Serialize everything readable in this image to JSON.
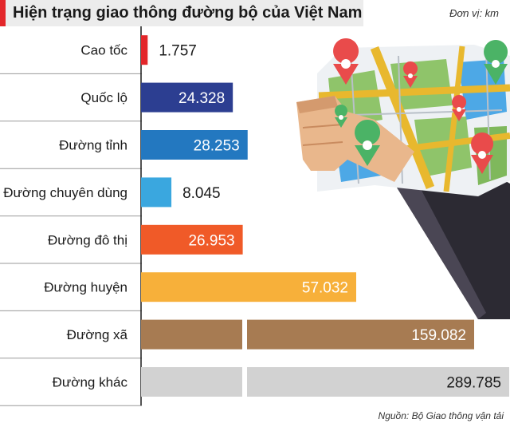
{
  "header": {
    "title": "Hiện trạng giao thông đường bộ của Việt Nam",
    "unit": "Đơn vị: km"
  },
  "source": "Nguồn: Bộ Giao thông vận tải",
  "colors": {
    "accent": "#e3262a",
    "title_bg": "#ececec"
  },
  "chart_data": {
    "type": "bar",
    "orientation": "horizontal",
    "categories": [
      "Cao tốc",
      "Quốc lộ",
      "Đường tỉnh",
      "Đường chuyên dùng",
      "Đường đô thị",
      "Đường huyện",
      "Đường xã",
      "Đường khác"
    ],
    "values": [
      1757,
      24328,
      28253,
      8045,
      26953,
      57032,
      159082,
      289785
    ],
    "value_labels": [
      "1.757",
      "24.328",
      "28.253",
      "8.045",
      "26.953",
      "57.032",
      "159.082",
      "289.785"
    ],
    "bar_colors": [
      "#e3262a",
      "#2c3e91",
      "#2378c0",
      "#3aa7df",
      "#f05a28",
      "#f7b03a",
      "#a77b52",
      "#d2d2d2"
    ],
    "value_label_colors": [
      "#1a1a1a",
      "#ffffff",
      "#ffffff",
      "#1a1a1a",
      "#ffffff",
      "#ffffff",
      "#ffffff",
      "#1a1a1a"
    ],
    "axis_break": true,
    "broken_categories": [
      "Đường xã",
      "Đường khác"
    ],
    "title": "Hiện trạng giao thông đường bộ của Việt Nam",
    "xlabel": "",
    "ylabel": ""
  },
  "illustration": {
    "icon": "hand-holding-map-icon"
  }
}
